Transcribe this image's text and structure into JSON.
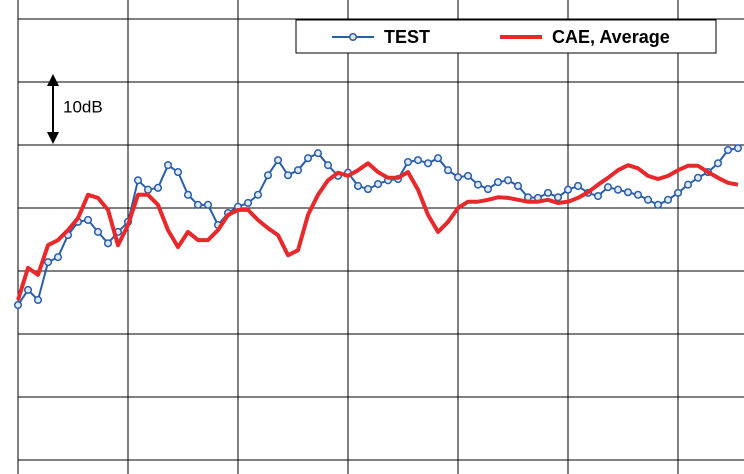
{
  "chart_data": {
    "type": "line",
    "annotation": "10dB",
    "x": [
      0,
      1,
      2,
      3,
      4,
      5,
      6,
      7,
      8,
      9,
      10,
      11,
      12,
      13,
      14,
      15,
      16,
      17,
      18,
      19,
      20,
      21,
      22,
      23,
      24,
      25,
      26,
      27,
      28,
      29,
      30,
      31,
      32,
      33,
      34,
      35,
      36,
      37,
      38,
      39,
      40,
      41,
      42,
      43,
      44,
      45,
      46,
      47,
      48,
      49,
      50,
      51,
      52,
      53,
      54,
      55,
      56,
      57,
      58,
      59,
      60,
      61,
      62,
      63,
      64,
      65,
      66,
      67,
      68,
      69,
      70,
      71,
      72
    ],
    "xlim": [
      0,
      72.6
    ],
    "xticks": [
      0,
      11,
      22,
      33,
      44,
      55,
      66
    ],
    "ylim": [
      -2,
      71
    ],
    "yticks": [
      0,
      10,
      20,
      30,
      40,
      50,
      60,
      70
    ],
    "grid": true,
    "legend": "top-right",
    "series": [
      {
        "name": "TEST",
        "color": "#2a5ea8",
        "marker": "circle",
        "values": [
          24.6,
          27.0,
          25.4,
          31.4,
          32.2,
          35.7,
          37.8,
          38.1,
          36.2,
          34.4,
          36.2,
          37.8,
          44.4,
          42.9,
          43.2,
          46.8,
          45.7,
          42.1,
          40.5,
          40.5,
          37.3,
          39.2,
          40.2,
          40.8,
          42.1,
          45.2,
          47.6,
          45.2,
          46.0,
          47.9,
          48.7,
          46.8,
          45.1,
          45.6,
          43.5,
          43.0,
          43.8,
          44.4,
          44.6,
          47.3,
          47.6,
          47.1,
          47.9,
          46.0,
          44.9,
          45.1,
          43.7,
          43.0,
          44.1,
          44.4,
          43.5,
          41.7,
          41.6,
          42.4,
          41.7,
          42.9,
          43.5,
          42.4,
          41.9,
          43.3,
          42.9,
          42.5,
          42.1,
          41.3,
          40.5,
          41.3,
          42.4,
          43.7,
          44.8,
          45.7,
          47.1,
          49.2,
          49.5
        ]
      },
      {
        "name": "CAE, Average",
        "color": "#e8282a",
        "values": [
          25.4,
          30.5,
          29.4,
          34.1,
          34.9,
          36.5,
          38.4,
          42.1,
          41.6,
          39.7,
          34.1,
          37.3,
          42.1,
          42.1,
          40.5,
          36.5,
          33.8,
          36.2,
          34.9,
          34.9,
          36.5,
          38.9,
          39.7,
          39.7,
          38.1,
          36.8,
          35.7,
          32.5,
          33.3,
          38.9,
          42.1,
          44.4,
          45.6,
          45.1,
          46.0,
          47.1,
          45.7,
          44.8,
          44.8,
          45.7,
          42.9,
          38.9,
          36.2,
          37.8,
          40.0,
          41.0,
          41.0,
          41.3,
          41.7,
          41.6,
          41.3,
          41.0,
          41.0,
          41.3,
          40.8,
          41.0,
          41.6,
          42.5,
          43.7,
          44.8,
          46.0,
          46.8,
          46.3,
          45.1,
          44.6,
          45.1,
          46.0,
          46.7,
          46.7,
          45.7,
          44.8,
          44.0,
          43.7
        ]
      }
    ]
  }
}
